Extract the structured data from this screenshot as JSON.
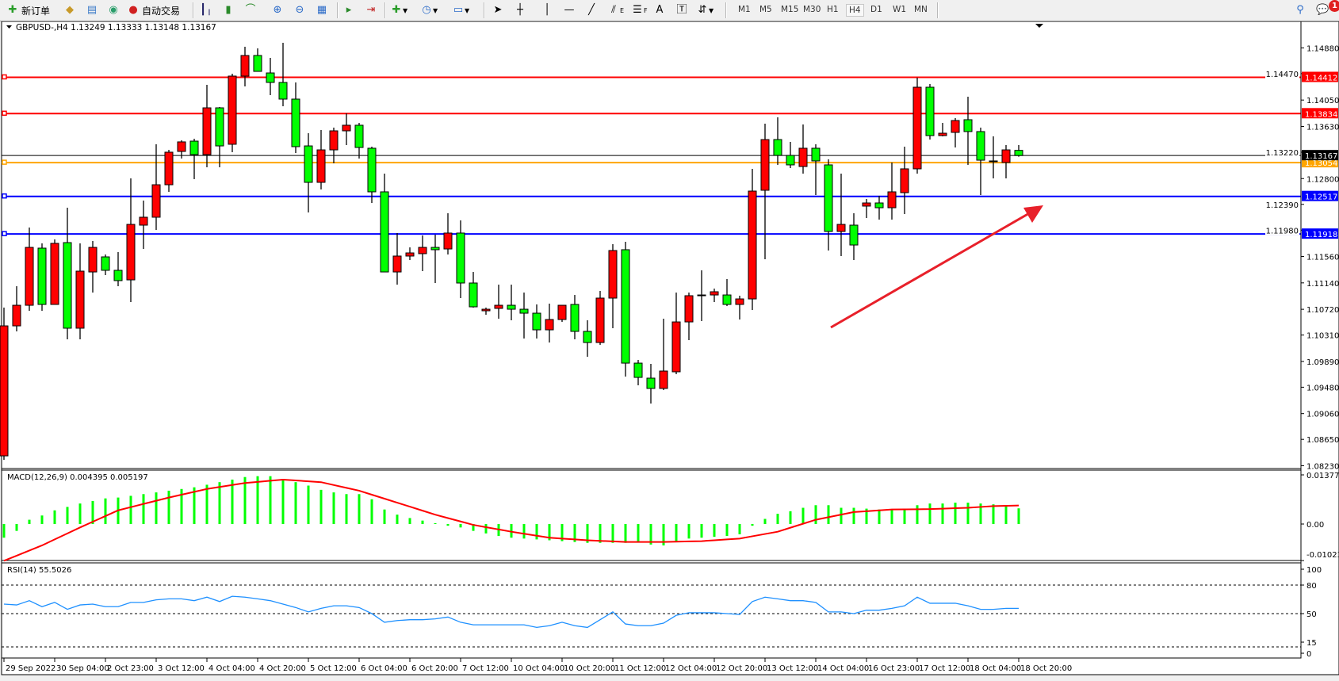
{
  "toolbar": {
    "new_order_label": "新订单",
    "autotrading_label": "自动交易",
    "timeframes": [
      "M1",
      "M5",
      "M15",
      "M30",
      "H1",
      "H4",
      "D1",
      "W1",
      "MN"
    ],
    "active_timeframe": "H4",
    "notification_count": "1",
    "text_tool_label": "A",
    "fib_e_label": "E",
    "fib_f_label": "F"
  },
  "chart": {
    "header": "GBPUSD-,H4  1.13249 1.13333 1.13148 1.13167",
    "colors": {
      "bull": "#ff0000",
      "bear": "#00ff00",
      "bid_line": "#000000"
    },
    "price_ticks": [
      "1.14880",
      "1.14470",
      "1.14050",
      "1.13630",
      "1.13220",
      "1.12800",
      "1.12390",
      "1.11980",
      "1.11560",
      "1.11140",
      "1.10720",
      "1.10310",
      "1.09890",
      "1.09480",
      "1.09060",
      "1.08650",
      "1.08230"
    ],
    "levels": [
      {
        "price": "1.14412",
        "color": "#ff0000"
      },
      {
        "price": "1.13834",
        "color": "#ff0000"
      },
      {
        "price": "1.13054",
        "color": "#ffa500"
      },
      {
        "price": "1.12517",
        "color": "#0000ff"
      },
      {
        "price": "1.11918",
        "color": "#0000ff"
      }
    ],
    "bid": "1.13167",
    "time_labels": [
      "29 Sep 2022",
      "30 Sep 04:00",
      "2 Oct 23:00",
      "3 Oct 12:00",
      "4 Oct 04:00",
      "4 Oct 20:00",
      "5 Oct 12:00",
      "6 Oct 04:00",
      "6 Oct 20:00",
      "7 Oct 12:00",
      "10 Oct 04:00",
      "10 Oct 20:00",
      "11 Oct 12:00",
      "12 Oct 04:00",
      "12 Oct 20:00",
      "13 Oct 12:00",
      "14 Oct 04:00",
      "16 Oct 23:00",
      "17 Oct 12:00",
      "18 Oct 04:00",
      "18 Oct 20:00"
    ],
    "annotation_arrow_color": "#e8202a"
  },
  "macd": {
    "label": "MACD(12,26,9) 0.004395 0.005197",
    "ticks": [
      "0.013772",
      "0.00",
      "-0.010239"
    ],
    "histogram_color": "#00ff00",
    "signal_color": "#ff0000"
  },
  "rsi": {
    "label": "RSI(14) 55.5026",
    "ticks": [
      "100",
      "80",
      "50",
      "15",
      "0"
    ],
    "levels": [
      80,
      50,
      15
    ],
    "line_color": "#1e90ff"
  },
  "chart_data": [
    {
      "type": "candlestick",
      "symbol": "GBPUSD-",
      "timeframe": "H4",
      "ylim": [
        1.0823,
        1.1488
      ],
      "ohlc": [
        [
          1.08387,
          1.10747,
          1.08324,
          1.10456
        ],
        [
          1.10456,
          1.11087,
          1.10368,
          1.10784
        ],
        [
          1.10784,
          1.12021,
          1.10696,
          1.11705
        ],
        [
          1.11693,
          1.11769,
          1.10696,
          1.10797
        ],
        [
          1.10797,
          1.11832,
          1.10797,
          1.11769
        ],
        [
          1.11781,
          1.12336,
          1.10242,
          1.10419
        ],
        [
          1.10419,
          1.11769,
          1.10242,
          1.11327
        ],
        [
          1.11314,
          1.11806,
          1.10986,
          1.11705
        ],
        [
          1.11554,
          1.11592,
          1.11264,
          1.1134
        ],
        [
          1.1134,
          1.1163,
          1.11087,
          1.11176
        ],
        [
          1.11188,
          1.12803,
          1.10835,
          1.12071
        ],
        [
          1.12059,
          1.1245,
          1.1168,
          1.12185
        ],
        [
          1.12185,
          1.13346,
          1.11983,
          1.12702
        ],
        [
          1.12702,
          1.13257,
          1.12589,
          1.1322
        ],
        [
          1.13232,
          1.13409,
          1.13119,
          1.13384
        ],
        [
          1.13396,
          1.13434,
          1.12791,
          1.13182
        ],
        [
          1.13182,
          1.14292,
          1.1298,
          1.13926
        ],
        [
          1.13926,
          1.13939,
          1.1298,
          1.1332
        ],
        [
          1.13346,
          1.14469,
          1.1322,
          1.14431
        ],
        [
          1.14431,
          1.14898,
          1.14267,
          1.14759
        ],
        [
          1.14759,
          1.14872,
          1.14506,
          1.14506
        ],
        [
          1.14481,
          1.14721,
          1.14128,
          1.1433
        ],
        [
          1.1433,
          1.14961,
          1.13951,
          1.14065
        ],
        [
          1.14065,
          1.1433,
          1.13207,
          1.13308
        ],
        [
          1.1332,
          1.13522,
          1.12261,
          1.1274
        ],
        [
          1.1274,
          1.13573,
          1.12627,
          1.13257
        ],
        [
          1.13257,
          1.13611,
          1.13043,
          1.1356
        ],
        [
          1.1356,
          1.13838,
          1.13333,
          1.13649
        ],
        [
          1.13649,
          1.13686,
          1.13119,
          1.13295
        ],
        [
          1.13283,
          1.13308,
          1.12412,
          1.12589
        ],
        [
          1.12589,
          1.12879,
          1.11314,
          1.11314
        ],
        [
          1.11314,
          1.11933,
          1.11112,
          1.11567
        ],
        [
          1.11567,
          1.11705,
          1.11504,
          1.11617
        ],
        [
          1.11605,
          1.11895,
          1.11327,
          1.11705
        ],
        [
          1.11705,
          1.11907,
          1.11138,
          1.11668
        ],
        [
          1.1168,
          1.12248,
          1.11592,
          1.11933
        ],
        [
          1.11933,
          1.12135,
          1.10898,
          1.11138
        ],
        [
          1.11138,
          1.11314,
          1.10747,
          1.10759
        ],
        [
          1.10696,
          1.10747,
          1.10633,
          1.10721
        ],
        [
          1.10734,
          1.11112,
          1.1057,
          1.10784
        ],
        [
          1.10784,
          1.11112,
          1.10545,
          1.10721
        ],
        [
          1.10721,
          1.10986,
          1.10255,
          1.10658
        ],
        [
          1.10658,
          1.10797,
          1.10255,
          1.10393
        ],
        [
          1.10393,
          1.1081,
          1.10191,
          1.10557
        ],
        [
          1.10557,
          1.10784,
          1.10519,
          1.10784
        ],
        [
          1.10797,
          1.10948,
          1.10242,
          1.10368
        ],
        [
          1.10368,
          1.10545,
          1.09964,
          1.10191
        ],
        [
          1.10191,
          1.11012,
          1.10154,
          1.10898
        ],
        [
          1.10898,
          1.11756,
          1.10419,
          1.11655
        ],
        [
          1.11668,
          1.11794,
          1.09649,
          1.09863
        ],
        [
          1.09863,
          1.09914,
          1.0951,
          1.09636
        ],
        [
          1.09624,
          1.09851,
          1.0922,
          1.0946
        ],
        [
          1.0946,
          1.1057,
          1.09434,
          1.09737
        ],
        [
          1.09725,
          1.10986,
          1.09687,
          1.10519
        ],
        [
          1.10519,
          1.10986,
          1.10229,
          1.10936
        ],
        [
          1.10948,
          1.1134,
          1.10532,
          1.10948
        ],
        [
          1.10948,
          1.11049,
          1.10835,
          1.10999
        ],
        [
          1.10948,
          1.11201,
          1.10772,
          1.10797
        ],
        [
          1.10797,
          1.10936,
          1.10557,
          1.10885
        ],
        [
          1.10885,
          1.12955,
          1.10709,
          1.12601
        ],
        [
          1.12614,
          1.13674,
          1.11516,
          1.13421
        ],
        [
          1.13421,
          1.13775,
          1.13018,
          1.13169
        ],
        [
          1.13169,
          1.13384,
          1.12967,
          1.13018
        ],
        [
          1.12992,
          1.13661,
          1.12879,
          1.13283
        ],
        [
          1.13283,
          1.13346,
          1.12538,
          1.13081
        ],
        [
          1.13018,
          1.13106,
          1.11655,
          1.11958
        ],
        [
          1.11958,
          1.12879,
          1.11567,
          1.12071
        ],
        [
          1.12059,
          1.12248,
          1.11504,
          1.11743
        ],
        [
          1.12362,
          1.12475,
          1.12172,
          1.12412
        ],
        [
          1.12412,
          1.12526,
          1.12147,
          1.12336
        ],
        [
          1.12336,
          1.13056,
          1.12147,
          1.12589
        ],
        [
          1.12576,
          1.13308,
          1.12235,
          1.12955
        ],
        [
          1.12955,
          1.14406,
          1.12879,
          1.14254
        ],
        [
          1.14254,
          1.14305,
          1.13421,
          1.13484
        ],
        [
          1.13484,
          1.13686,
          1.13472,
          1.13522
        ],
        [
          1.13535,
          1.13762,
          1.13295,
          1.13724
        ],
        [
          1.13737,
          1.14103,
          1.13018,
          1.13548
        ],
        [
          1.13548,
          1.13611,
          1.12538,
          1.13093
        ],
        [
          1.13081,
          1.13472,
          1.12803,
          1.13068
        ],
        [
          1.13056,
          1.13333,
          1.12803,
          1.13257
        ],
        [
          1.13249,
          1.13333,
          1.13148,
          1.13167
        ]
      ]
    },
    {
      "type": "bar+line",
      "title": "MACD(12,26,9)",
      "ylim": [
        -0.010239,
        0.013772
      ],
      "series": [
        {
          "name": "MACD",
          "values": [
            -0.00383,
            -0.00192,
            0.0012,
            0.00239,
            0.00383,
            0.00479,
            0.00575,
            0.00646,
            0.00718,
            0.00742,
            0.0079,
            0.00838,
            0.00886,
            0.00934,
            0.00982,
            0.01029,
            0.01101,
            0.01173,
            0.01245,
            0.01317,
            0.01341,
            0.01341,
            0.01245,
            0.01173,
            0.01077,
            0.00958,
            0.00886,
            0.00838,
            0.00838,
            0.00694,
            0.00407,
            0.00263,
            0.00168,
            0.00096,
            0.00024,
            -0.00048,
            -0.00096,
            -0.00192,
            -0.00263,
            -0.00335,
            -0.00383,
            -0.00407,
            -0.00431,
            -0.00455,
            -0.00479,
            -0.00503,
            -0.00527,
            -0.00527,
            -0.00527,
            -0.00527,
            -0.00503,
            -0.00575,
            -0.00599,
            -0.00503,
            -0.00407,
            -0.00383,
            -0.00359,
            -0.00335,
            -0.00287,
            -0.00048,
            0.00144,
            0.00287,
            0.00359,
            0.00455,
            0.00527,
            0.00527,
            0.00455,
            0.00455,
            0.00431,
            0.00407,
            0.00407,
            0.00407,
            0.00527,
            0.00575,
            0.00575,
            0.00599,
            0.00599,
            0.00575,
            0.00551,
            0.00527,
            0.004395
          ]
        },
        {
          "name": "Signal",
          "values": [
            -0.01029,
            -0.00886,
            -0.00742,
            -0.00599,
            -0.00431,
            -0.00264,
            -0.00096,
            0.00064,
            0.00223,
            0.00383,
            0.00473,
            0.00563,
            0.00652,
            0.00742,
            0.00822,
            0.00902,
            0.00982,
            0.01038,
            0.01093,
            0.01149,
            0.01181,
            0.01213,
            0.01245,
            0.01221,
            0.01197,
            0.01173,
            0.01093,
            0.01014,
            0.00934,
            0.00822,
            0.00711,
            0.00599,
            0.00487,
            0.00375,
            0.00263,
            0.00167,
            0.00072,
            -0.00024,
            -0.00088,
            -0.00151,
            -0.00215,
            -0.00271,
            -0.00327,
            -0.00383,
            -0.00407,
            -0.00431,
            -0.00455,
            -0.00471,
            -0.00487,
            -0.00503,
            -0.00503,
            -0.00503,
            -0.00503,
            -0.00495,
            -0.00487,
            -0.00479,
            -0.00455,
            -0.00431,
            -0.00407,
            -0.00343,
            -0.00279,
            -0.00215,
            -0.00103,
            8e-05,
            0.0012,
            0.00192,
            0.00263,
            0.00335,
            0.00359,
            0.00383,
            0.00407,
            0.00411,
            0.00415,
            0.00419,
            0.00431,
            0.00443,
            0.00455,
            0.00479,
            0.00503,
            0.0051,
            0.005197
          ]
        }
      ]
    },
    {
      "type": "line",
      "title": "RSI(14)",
      "ylim": [
        0,
        100
      ],
      "values": [
        60.0,
        59.1,
        63.6,
        57.3,
        61.8,
        54.5,
        59.1,
        60.0,
        57.3,
        57.3,
        61.8,
        61.8,
        64.5,
        65.5,
        65.5,
        63.6,
        67.3,
        62.7,
        68.2,
        67.3,
        65.5,
        63.6,
        60.0,
        56.4,
        51.8,
        55.5,
        58.2,
        58.2,
        56.4,
        50.0,
        40.9,
        42.7,
        43.6,
        43.6,
        44.5,
        46.4,
        40.9,
        38.2,
        38.2,
        38.2,
        38.2,
        38.2,
        35.5,
        37.3,
        40.9,
        37.3,
        35.5,
        43.6,
        51.8,
        39.1,
        37.3,
        37.3,
        40.0,
        48.2,
        50.9,
        50.9,
        50.9,
        50.0,
        49.1,
        62.7,
        67.3,
        65.5,
        63.6,
        63.6,
        61.8,
        51.8,
        51.8,
        50.0,
        53.6,
        53.6,
        55.5,
        58.2,
        67.3,
        60.9,
        60.9,
        60.9,
        58.2,
        54.5,
        54.5,
        55.5,
        55.5026
      ]
    }
  ]
}
